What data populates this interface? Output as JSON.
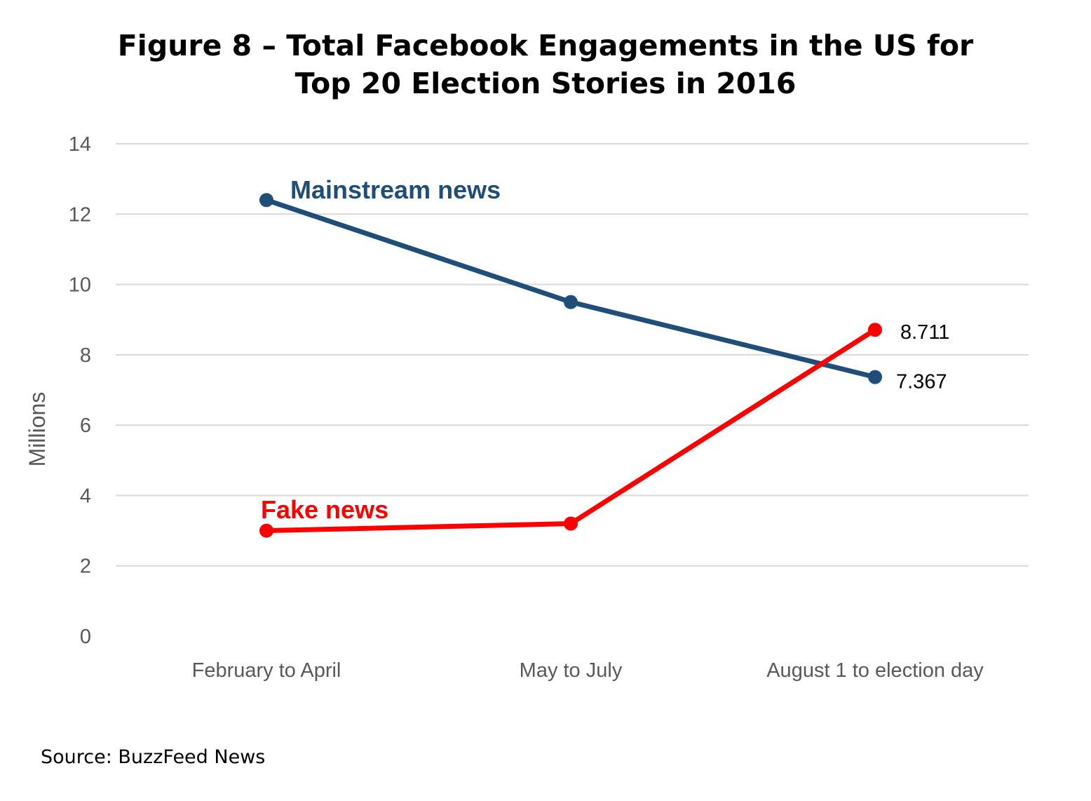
{
  "title_line1": "Figure 8 – Total Facebook Engagements in the US for",
  "title_line2": "Top 20 Election Stories in 2016",
  "source": "Source: BuzzFeed News",
  "colors": {
    "mainstream": "#1F4E79",
    "fake": "#FF0000",
    "grid": "#D9D9D9",
    "axis_text": "#595959"
  },
  "chart_data": {
    "type": "line",
    "ylabel": "Millions",
    "ylim": [
      0,
      14
    ],
    "yticks": [
      0,
      2,
      4,
      6,
      8,
      10,
      12,
      14
    ],
    "categories": [
      "February to April",
      "May to July",
      "August 1 to election day"
    ],
    "grid": true,
    "series": [
      {
        "name": "Mainstream news",
        "values": [
          12.4,
          9.5,
          7.367
        ],
        "color": "#1F4E79",
        "end_label": "7.367"
      },
      {
        "name": "Fake news",
        "values": [
          3.0,
          3.2,
          8.711
        ],
        "color": "#FF0000",
        "end_label": "8.711"
      }
    ]
  }
}
